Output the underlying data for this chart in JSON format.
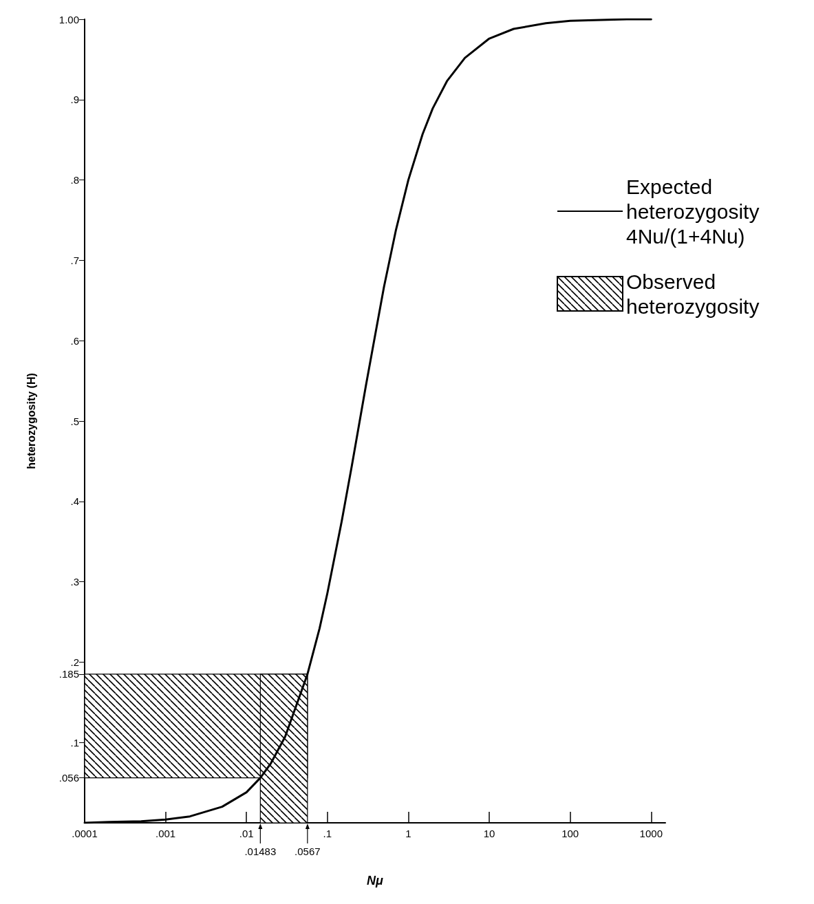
{
  "chart_data": {
    "type": "line",
    "xlabel": "Nμ",
    "ylabel": "heterozygosity (H)",
    "log": "x",
    "xlim": [
      0.0001,
      1500
    ],
    "xticks": [
      {
        "value": 0.0001,
        "label": ".0001"
      },
      {
        "value": 0.001,
        "label": ".001"
      },
      {
        "value": 0.01,
        "label": ".01"
      },
      {
        "value": 0.1,
        "label": ".1"
      },
      1,
      10,
      100,
      1000
    ],
    "ylim": [
      0,
      1
    ],
    "yticks": [
      {
        "value": 0.056,
        "label": ".056"
      },
      {
        "value": 0.1,
        "label": ".1"
      },
      {
        "value": 0.185,
        "label": ".185"
      },
      {
        "value": 0.2,
        "label": ".2"
      },
      {
        "value": 0.3,
        "label": ".3"
      },
      {
        "value": 0.4,
        "label": ".4"
      },
      {
        "value": 0.5,
        "label": ".5"
      },
      {
        "value": 0.6,
        "label": ".6"
      },
      {
        "value": 0.7,
        "label": ".7"
      },
      {
        "value": 0.8,
        "label": ".8"
      },
      {
        "value": 0.9,
        "label": ".9"
      },
      {
        "value": 1,
        "label": "1.00"
      }
    ],
    "x": [
      0.0001,
      0.0002,
      0.0005,
      0.001,
      0.002,
      0.005,
      0.01,
      0.01483,
      0.02,
      0.03,
      0.0567,
      0.08,
      0.1,
      0.15,
      0.2,
      0.3,
      0.5,
      0.7,
      1,
      1.5,
      2,
      3,
      5,
      10,
      20,
      50,
      100,
      200,
      500,
      1000
    ],
    "series": [
      {
        "name": "Expected heterozygosity 4Nu/(1+4Nu)",
        "color": "#000000",
        "values": [
          0,
          0.001,
          0.002,
          0.004,
          0.008,
          0.02,
          0.038,
          0.056,
          0.074,
          0.107,
          0.185,
          0.242,
          0.286,
          0.375,
          0.444,
          0.545,
          0.667,
          0.737,
          0.8,
          0.857,
          0.889,
          0.923,
          0.952,
          0.976,
          0.988,
          0.995,
          0.998,
          0.999,
          1,
          1
        ]
      }
    ],
    "annotations": [
      {
        "text": ".01483",
        "x": 0.01483,
        "y": 0
      },
      {
        "text": ".0567",
        "x": 0.0567,
        "y": 0
      }
    ],
    "bands": [
      {
        "axis": "y",
        "from": 0.056,
        "to": 0.185,
        "label": "Observed heterozygosity",
        "color": "#000000"
      },
      {
        "axis": "x",
        "from": 0.01483,
        "to": 0.0567,
        "color": "#000000"
      }
    ],
    "legend": "right",
    "grid": false,
    "marker": "none",
    "line_style": "solid"
  }
}
